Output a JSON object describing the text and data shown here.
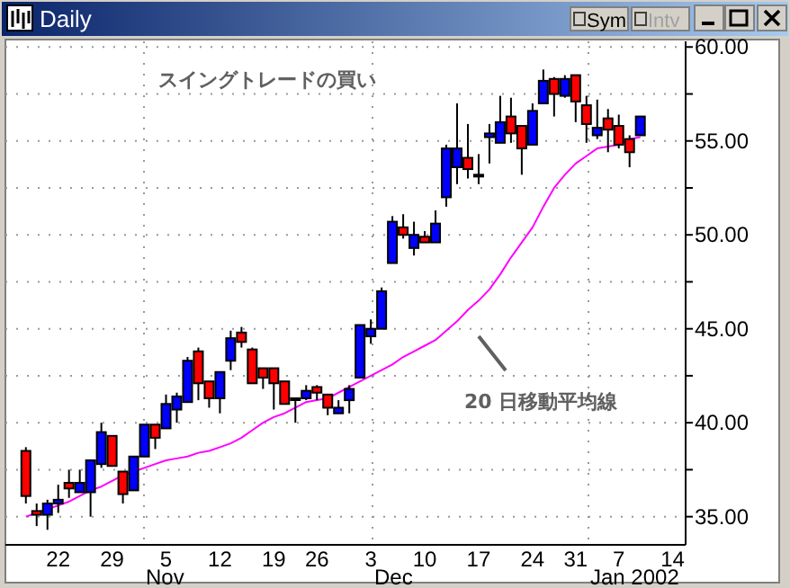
{
  "chart_data": {
    "type": "candlestick",
    "title": "Daily",
    "categories": [
      null,
      null,
      null,
      "22",
      null,
      null,
      null,
      null,
      "29",
      null,
      null,
      null,
      null,
      "5",
      null,
      null,
      null,
      null,
      "12",
      null,
      null,
      null,
      null,
      "19",
      null,
      null,
      null,
      "26",
      null,
      null,
      null,
      null,
      "3",
      null,
      null,
      null,
      null,
      "10",
      null,
      null,
      null,
      null,
      "17",
      null,
      null,
      null,
      null,
      "24",
      null,
      null,
      null,
      "31",
      null,
      null,
      null,
      "7",
      null,
      null,
      null,
      null,
      "14"
    ],
    "ohlc": [
      [
        38.5,
        38.7,
        35.7,
        36.1
      ],
      [
        35.3,
        35.7,
        34.5,
        35.1
      ],
      [
        35.1,
        35.9,
        34.3,
        35.7
      ],
      [
        35.7,
        36.7,
        35.2,
        35.9
      ],
      [
        36.8,
        37.5,
        36.0,
        36.5
      ],
      [
        36.3,
        37.5,
        36.3,
        36.8
      ],
      [
        36.3,
        38.0,
        35.0,
        38.0
      ],
      [
        37.8,
        40.0,
        37.6,
        39.5
      ],
      [
        39.3,
        39.3,
        37.7,
        37.7
      ],
      [
        37.4,
        37.4,
        35.7,
        36.2
      ],
      [
        36.4,
        38.2,
        36.4,
        38.2
      ],
      [
        38.2,
        39.9,
        38.2,
        39.9
      ],
      [
        39.9,
        39.9,
        38.6,
        39.2
      ],
      [
        39.7,
        41.5,
        39.7,
        41.0
      ],
      [
        40.7,
        41.6,
        40.0,
        41.4
      ],
      [
        41.1,
        43.5,
        41.1,
        43.3
      ],
      [
        43.8,
        44.0,
        41.2,
        42.1
      ],
      [
        42.2,
        42.2,
        40.8,
        41.3
      ],
      [
        41.3,
        42.7,
        40.5,
        42.7
      ],
      [
        43.3,
        44.9,
        42.8,
        44.5
      ],
      [
        44.8,
        45.1,
        44.0,
        44.3
      ],
      [
        43.9,
        44.0,
        42.1,
        42.1
      ],
      [
        42.9,
        42.9,
        41.8,
        42.4
      ],
      [
        42.9,
        42.9,
        40.7,
        42.1
      ],
      [
        42.2,
        42.2,
        41.0,
        41.0
      ],
      [
        41.3,
        41.3,
        40.0,
        41.3
      ],
      [
        41.3,
        42.0,
        41.2,
        41.7
      ],
      [
        41.9,
        42.0,
        41.2,
        41.6
      ],
      [
        41.5,
        41.5,
        40.4,
        40.8
      ],
      [
        40.5,
        41.2,
        40.5,
        40.8
      ],
      [
        41.2,
        42.0,
        40.5,
        41.8
      ],
      [
        42.4,
        45.2,
        42.4,
        45.2
      ],
      [
        44.6,
        45.5,
        44.2,
        45.0
      ],
      [
        45.0,
        47.2,
        45.0,
        47.0
      ],
      [
        48.5,
        51.0,
        48.5,
        50.7
      ],
      [
        50.4,
        51.1,
        49.8,
        50.0
      ],
      [
        49.3,
        50.7,
        48.9,
        50.0
      ],
      [
        49.9,
        50.2,
        49.6,
        49.6
      ],
      [
        49.6,
        51.3,
        49.6,
        50.6
      ],
      [
        52.0,
        54.8,
        51.5,
        54.6
      ],
      [
        53.6,
        57.0,
        52.7,
        54.6
      ],
      [
        54.1,
        55.9,
        53.0,
        53.5
      ],
      [
        53.2,
        54.3,
        52.7,
        53.2
      ],
      [
        55.2,
        55.9,
        53.8,
        55.4
      ],
      [
        54.9,
        57.4,
        54.9,
        56.0
      ],
      [
        56.3,
        57.3,
        54.9,
        55.4
      ],
      [
        55.8,
        55.8,
        53.2,
        54.6
      ],
      [
        54.8,
        57.0,
        54.8,
        56.6
      ],
      [
        57.0,
        58.8,
        57.0,
        58.2
      ],
      [
        58.3,
        58.4,
        56.3,
        57.5
      ],
      [
        57.4,
        58.5,
        57.3,
        58.3
      ],
      [
        58.5,
        58.5,
        56.0,
        57.1
      ],
      [
        56.9,
        57.4,
        54.9,
        55.9
      ],
      [
        55.3,
        57.2,
        55.1,
        55.7
      ],
      [
        56.2,
        56.7,
        54.4,
        55.6
      ],
      [
        55.8,
        56.4,
        54.6,
        54.8
      ],
      [
        55.1,
        55.3,
        53.6,
        54.4
      ],
      [
        55.3,
        56.3,
        55.3,
        56.3
      ],
      null,
      null,
      null
    ],
    "colors": [
      "#ff0000",
      "#ff0000",
      "#0000ff",
      "#0000ff",
      "#ff0000",
      "#0000ff",
      "#0000ff",
      "#0000ff",
      "#ff0000",
      "#ff0000",
      "#0000ff",
      "#0000ff",
      "#ff0000",
      "#0000ff",
      "#0000ff",
      "#0000ff",
      "#ff0000",
      "#ff0000",
      "#0000ff",
      "#0000ff",
      "#ff0000",
      "#ff0000",
      "#ff0000",
      "#ff0000",
      "#ff0000",
      "#0000ff",
      "#0000ff",
      "#ff0000",
      "#ff0000",
      "#0000ff",
      "#0000ff",
      "#0000ff",
      "#0000ff",
      "#0000ff",
      "#0000ff",
      "#ff0000",
      "#0000ff",
      "#ff0000",
      "#0000ff",
      "#0000ff",
      "#0000ff",
      "#ff0000",
      "#0000ff",
      "#0000ff",
      "#0000ff",
      "#ff0000",
      "#ff0000",
      "#0000ff",
      "#0000ff",
      "#ff0000",
      "#0000ff",
      "#ff0000",
      "#ff0000",
      "#0000ff",
      "#ff0000",
      "#ff0000",
      "#ff0000",
      "#0000ff",
      null,
      null,
      null
    ],
    "series": [
      {
        "type": "line",
        "color": "#ff00ff",
        "values": [
          35.0,
          35.2,
          35.4,
          35.6,
          35.8,
          36.1,
          36.4,
          36.6,
          36.9,
          37.2,
          37.4,
          37.6,
          37.8,
          38.0,
          38.1,
          38.2,
          38.4,
          38.5,
          38.7,
          38.9,
          39.2,
          39.6,
          40.0,
          40.3,
          40.5,
          40.8,
          41.1,
          41.2,
          41.3,
          41.6,
          41.9,
          42.2,
          42.5,
          42.8,
          43.1,
          43.5,
          43.8,
          44.1,
          44.4,
          44.9,
          45.4,
          46.0,
          46.5,
          47.1,
          47.9,
          48.8,
          49.6,
          50.4,
          51.5,
          52.5,
          53.2,
          53.8,
          54.2,
          54.6,
          54.7,
          54.8,
          55.1,
          55.2,
          null,
          null,
          null
        ]
      }
    ],
    "ylim": [
      33.5,
      60.3
    ],
    "yticks": [
      {
        "value": 35,
        "label": "35.00"
      },
      {
        "value": 37.5,
        "label": null
      },
      {
        "value": 40,
        "label": "40.00"
      },
      {
        "value": 42.5,
        "label": null
      },
      {
        "value": 45,
        "label": "45.00"
      },
      {
        "value": 47.5,
        "label": null
      },
      {
        "value": 50,
        "label": "50.00"
      },
      {
        "value": 52.5,
        "label": null
      },
      {
        "value": 55,
        "label": "55.00"
      },
      {
        "value": 57.5,
        "label": null
      },
      {
        "value": 60,
        "label": "60.00"
      }
    ],
    "grid": true,
    "annotations": [
      "スイングトレードの買い",
      "20 日移動平均線",
      "Nov",
      "Dec",
      "Jan 2002",
      "Sym",
      "Intv"
    ]
  }
}
